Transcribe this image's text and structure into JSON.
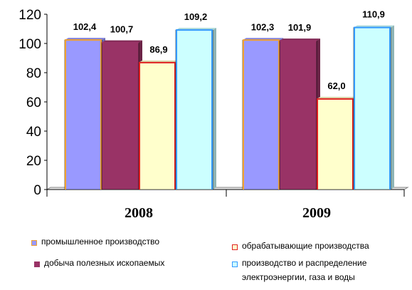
{
  "chart_data": {
    "type": "bar",
    "categories": [
      "2008",
      "2009"
    ],
    "series": [
      {
        "name": "промышленное производство",
        "values": [
          102.4,
          102.3
        ],
        "labels": [
          "102,4",
          "102,3"
        ],
        "fill": "#9999ff",
        "stroke": "#f0a030"
      },
      {
        "name": "добыча полезных ископаемых",
        "values": [
          100.7,
          101.9
        ],
        "labels": [
          "100,7",
          "101,9"
        ],
        "fill": "#993366",
        "stroke": "#993366"
      },
      {
        "name": "обрабатывающие производства",
        "values": [
          86.9,
          62.0
        ],
        "labels": [
          "86,9",
          "62,0"
        ],
        "fill": "#ffffcc",
        "stroke": "#e02020"
      },
      {
        "name": "производство и распределение электроэнергии, газа и воды",
        "name_line1": "производство и распределение",
        "name_line2": "электроэнергии, газа и воды",
        "values": [
          109.2,
          110.9
        ],
        "labels": [
          "109,2",
          "110,9"
        ],
        "fill": "#ccffff",
        "stroke": "#3399ff"
      }
    ],
    "yticks": [
      "0",
      "20",
      "40",
      "60",
      "80",
      "100",
      "120"
    ],
    "ylim": [
      0,
      120
    ],
    "grid": false,
    "legend_position": "bottom"
  }
}
